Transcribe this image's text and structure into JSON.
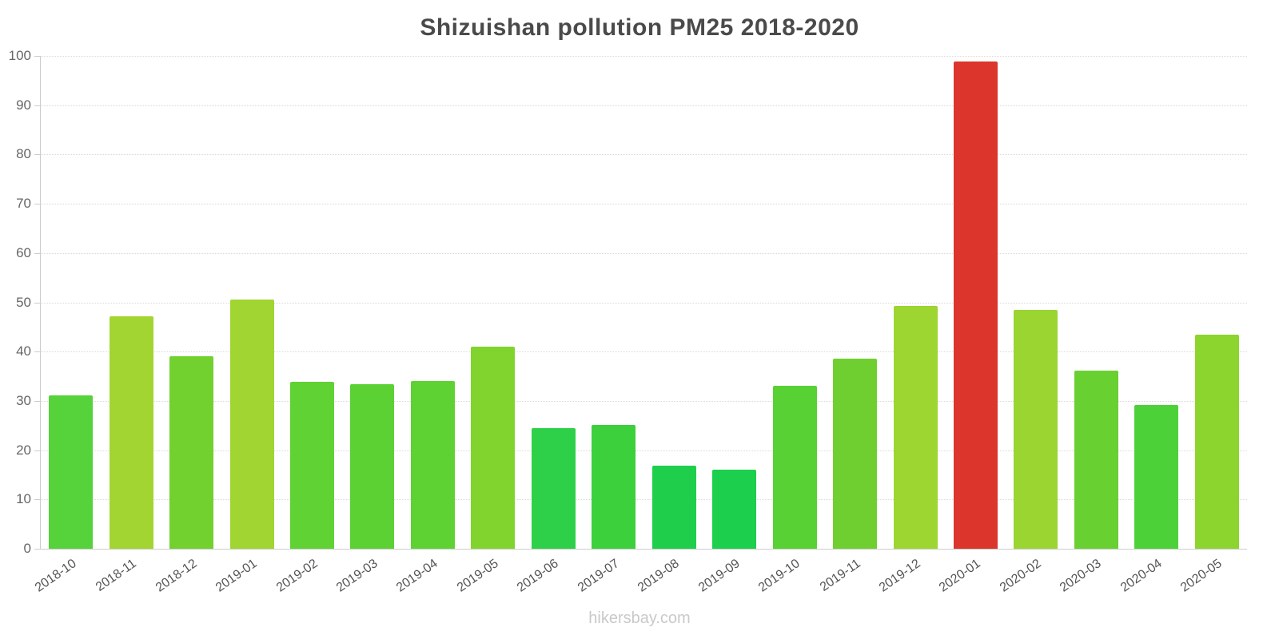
{
  "footer": "hikersbay.com",
  "chart_data": {
    "type": "bar",
    "title": "Shizuishan pollution PM25 2018-2020",
    "xlabel": "",
    "ylabel": "",
    "ylim": [
      0,
      100
    ],
    "yticks": [
      0,
      10,
      20,
      30,
      40,
      50,
      60,
      70,
      80,
      90,
      100
    ],
    "grid": true,
    "legend": false,
    "categories": [
      "2018-10",
      "2018-11",
      "2018-12",
      "2019-01",
      "2019-02",
      "2019-03",
      "2019-04",
      "2019-05",
      "2019-06",
      "2019-07",
      "2019-08",
      "2019-09",
      "2019-10",
      "2019-11",
      "2019-12",
      "2020-01",
      "2020-02",
      "2020-03",
      "2020-04",
      "2020-05"
    ],
    "values": [
      31.2,
      47.2,
      39.1,
      50.6,
      33.9,
      33.4,
      34.0,
      41.0,
      24.4,
      25.2,
      16.8,
      16.1,
      33.1,
      38.6,
      49.2,
      98.8,
      48.4,
      36.2,
      29.1,
      43.4
    ],
    "colors": [
      "#56D23A",
      "#A2D531",
      "#72D02F",
      "#A0D532",
      "#60D233",
      "#5CD134",
      "#5FD233",
      "#80D42D",
      "#2ED04A",
      "#3BD03C",
      "#1FCF4B",
      "#1CCF4D",
      "#58D135",
      "#70CF30",
      "#9DD531",
      "#DC352B",
      "#9BD531",
      "#69D031",
      "#4CD238",
      "#8CD42E"
    ]
  }
}
